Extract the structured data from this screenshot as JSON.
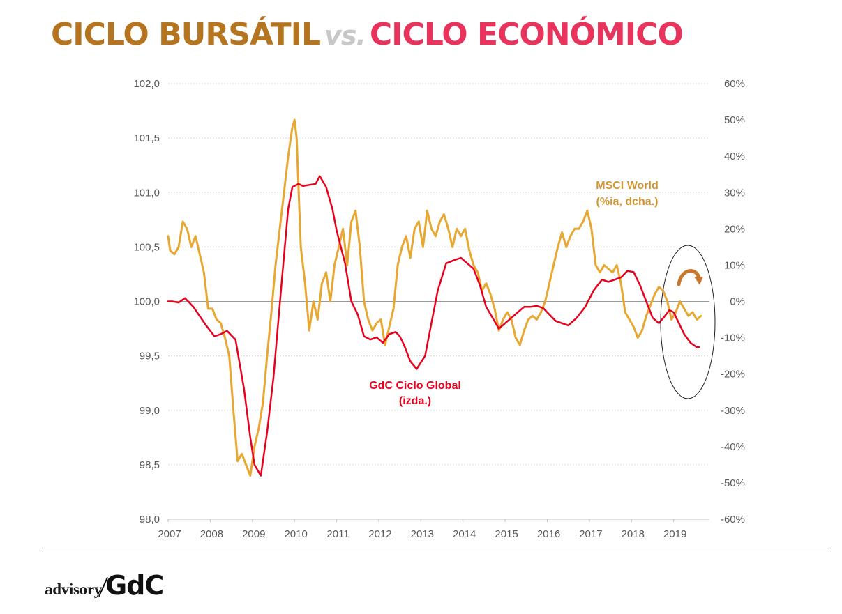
{
  "title": {
    "part1": "CICLO BURSÁTIL",
    "part2": "vs.",
    "part3": "CICLO ECONÓMICO"
  },
  "logo": {
    "text1": "advisory",
    "text2": "GdC"
  },
  "colors": {
    "gdc": "#e8001c",
    "msci": "#e8a731",
    "title_brown": "#b5741f",
    "title_pink": "#e8345c"
  },
  "chart_data": {
    "type": "line",
    "title": "CICLO BURSÁTIL vs. CICLO ECONÓMICO",
    "x_range": [
      2007.0,
      2019.85
    ],
    "x_ticks": [
      "2007",
      "2008",
      "2009",
      "2010",
      "2011",
      "2012",
      "2013",
      "2014",
      "2015",
      "2016",
      "2017",
      "2018",
      "2019"
    ],
    "y_left": {
      "label": "GdC Ciclo Global (izda.)",
      "range": [
        98.0,
        102.0
      ],
      "ticks": [
        "98,0",
        "98,5",
        "99,0",
        "99,5",
        "100,0",
        "100,5",
        "101,0",
        "101,5",
        "102,0"
      ]
    },
    "y_right": {
      "label": "MSCI World (%ia, dcha.)",
      "range": [
        -60,
        60
      ],
      "ticks": [
        "-60%",
        "-50%",
        "-40%",
        "-30%",
        "-20%",
        "-10%",
        "0%",
        "10%",
        "20%",
        "30%",
        "40%",
        "50%",
        "60%"
      ]
    },
    "grid": true,
    "series": [
      {
        "name": "GdC Ciclo Global",
        "label_line1": "GdC Ciclo Global",
        "label_line2": "(izda.)",
        "axis": "left",
        "x": [
          2007.0,
          2007.1,
          2007.25,
          2007.4,
          2007.6,
          2007.9,
          2008.1,
          2008.25,
          2008.4,
          2008.6,
          2008.8,
          2008.95,
          2009.05,
          2009.2,
          2009.35,
          2009.5,
          2009.7,
          2009.85,
          2009.95,
          2010.1,
          2010.2,
          2010.35,
          2010.5,
          2010.6,
          2010.75,
          2010.9,
          2011.0,
          2011.2,
          2011.35,
          2011.5,
          2011.65,
          2011.8,
          2011.95,
          2012.1,
          2012.25,
          2012.4,
          2012.5,
          2012.6,
          2012.75,
          2012.9,
          2013.1,
          2013.25,
          2013.4,
          2013.6,
          2013.8,
          2013.95,
          2014.1,
          2014.25,
          2014.4,
          2014.55,
          2014.7,
          2014.85,
          2015.0,
          2015.15,
          2015.3,
          2015.45,
          2015.6,
          2015.75,
          2015.9,
          2016.05,
          2016.2,
          2016.35,
          2016.5,
          2016.7,
          2016.9,
          2017.1,
          2017.3,
          2017.45,
          2017.6,
          2017.75,
          2017.9,
          2018.05,
          2018.2,
          2018.35,
          2018.5,
          2018.65,
          2018.8,
          2018.9,
          2019.0,
          2019.1,
          2019.25,
          2019.4,
          2019.55,
          2019.6
        ],
        "values": [
          100.0,
          100.0,
          99.99,
          100.03,
          99.95,
          99.78,
          99.68,
          99.7,
          99.73,
          99.65,
          99.2,
          98.75,
          98.5,
          98.4,
          98.8,
          99.3,
          100.2,
          100.85,
          101.05,
          101.08,
          101.06,
          101.07,
          101.08,
          101.15,
          101.05,
          100.85,
          100.65,
          100.35,
          100.0,
          99.88,
          99.68,
          99.65,
          99.67,
          99.62,
          99.7,
          99.72,
          99.68,
          99.6,
          99.45,
          99.38,
          99.5,
          99.8,
          100.1,
          100.35,
          100.38,
          100.4,
          100.35,
          100.3,
          100.15,
          99.95,
          99.85,
          99.75,
          99.8,
          99.85,
          99.9,
          99.95,
          99.95,
          99.96,
          99.94,
          99.88,
          99.82,
          99.8,
          99.78,
          99.85,
          99.95,
          100.1,
          100.2,
          100.18,
          100.2,
          100.22,
          100.28,
          100.27,
          100.15,
          100.0,
          99.85,
          99.8,
          99.87,
          99.92,
          99.9,
          99.82,
          99.7,
          99.62,
          99.58,
          99.58
        ]
      },
      {
        "name": "MSCI World",
        "label_line1": "MSCI World",
        "label_line2": "(%ia, dcha.)",
        "axis": "right",
        "x": [
          2007.0,
          2007.05,
          2007.15,
          2007.25,
          2007.35,
          2007.45,
          2007.55,
          2007.65,
          2007.75,
          2007.85,
          2007.95,
          2008.05,
          2008.15,
          2008.25,
          2008.35,
          2008.45,
          2008.55,
          2008.65,
          2008.75,
          2008.85,
          2008.95,
          2009.05,
          2009.15,
          2009.25,
          2009.35,
          2009.45,
          2009.55,
          2009.65,
          2009.75,
          2009.85,
          2009.95,
          2010.0,
          2010.05,
          2010.1,
          2010.15,
          2010.25,
          2010.35,
          2010.45,
          2010.55,
          2010.65,
          2010.75,
          2010.85,
          2010.95,
          2011.05,
          2011.15,
          2011.25,
          2011.35,
          2011.45,
          2011.55,
          2011.65,
          2011.75,
          2011.85,
          2011.95,
          2012.05,
          2012.15,
          2012.25,
          2012.35,
          2012.45,
          2012.55,
          2012.65,
          2012.75,
          2012.85,
          2012.95,
          2013.05,
          2013.15,
          2013.25,
          2013.35,
          2013.45,
          2013.55,
          2013.65,
          2013.75,
          2013.85,
          2013.95,
          2014.05,
          2014.15,
          2014.25,
          2014.35,
          2014.45,
          2014.55,
          2014.65,
          2014.75,
          2014.85,
          2014.95,
          2015.05,
          2015.15,
          2015.25,
          2015.35,
          2015.45,
          2015.55,
          2015.65,
          2015.75,
          2015.85,
          2015.95,
          2016.05,
          2016.15,
          2016.25,
          2016.35,
          2016.45,
          2016.55,
          2016.65,
          2016.75,
          2016.85,
          2016.95,
          2017.05,
          2017.15,
          2017.25,
          2017.35,
          2017.45,
          2017.55,
          2017.65,
          2017.75,
          2017.85,
          2017.95,
          2018.05,
          2018.15,
          2018.25,
          2018.35,
          2018.45,
          2018.55,
          2018.65,
          2018.75,
          2018.85,
          2018.95,
          2019.05,
          2019.15,
          2019.25,
          2019.35,
          2019.45,
          2019.55,
          2019.65
        ],
        "values": [
          18,
          14,
          13,
          15,
          22,
          20,
          15,
          18,
          13,
          8,
          -2,
          -2,
          -5,
          -6,
          -10,
          -15,
          -30,
          -44,
          -42,
          -45,
          -48,
          -40,
          -35,
          -28,
          -15,
          -3,
          10,
          20,
          30,
          40,
          48,
          50,
          45,
          30,
          15,
          5,
          -8,
          0,
          -5,
          5,
          8,
          0,
          10,
          15,
          20,
          10,
          22,
          25,
          15,
          0,
          -5,
          -8,
          -6,
          -5,
          -12,
          -7,
          -2,
          10,
          15,
          18,
          12,
          20,
          22,
          15,
          25,
          20,
          18,
          22,
          24,
          20,
          15,
          20,
          18,
          20,
          14,
          10,
          8,
          3,
          5,
          2,
          -2,
          -8,
          -5,
          -3,
          -5,
          -10,
          -12,
          -8,
          -5,
          -4,
          -5,
          -3,
          0,
          5,
          10,
          15,
          19,
          15,
          18,
          20,
          20,
          22,
          25,
          20,
          10,
          8,
          10,
          9,
          8,
          10,
          5,
          -3,
          -5,
          -7,
          -10,
          -8,
          -4,
          -1,
          2,
          4,
          3,
          0,
          -5,
          -3,
          0,
          -2,
          -4,
          -3,
          -5,
          -4
        ]
      }
    ],
    "annotation": "ellipse highlight with curved down arrow over 2019"
  }
}
